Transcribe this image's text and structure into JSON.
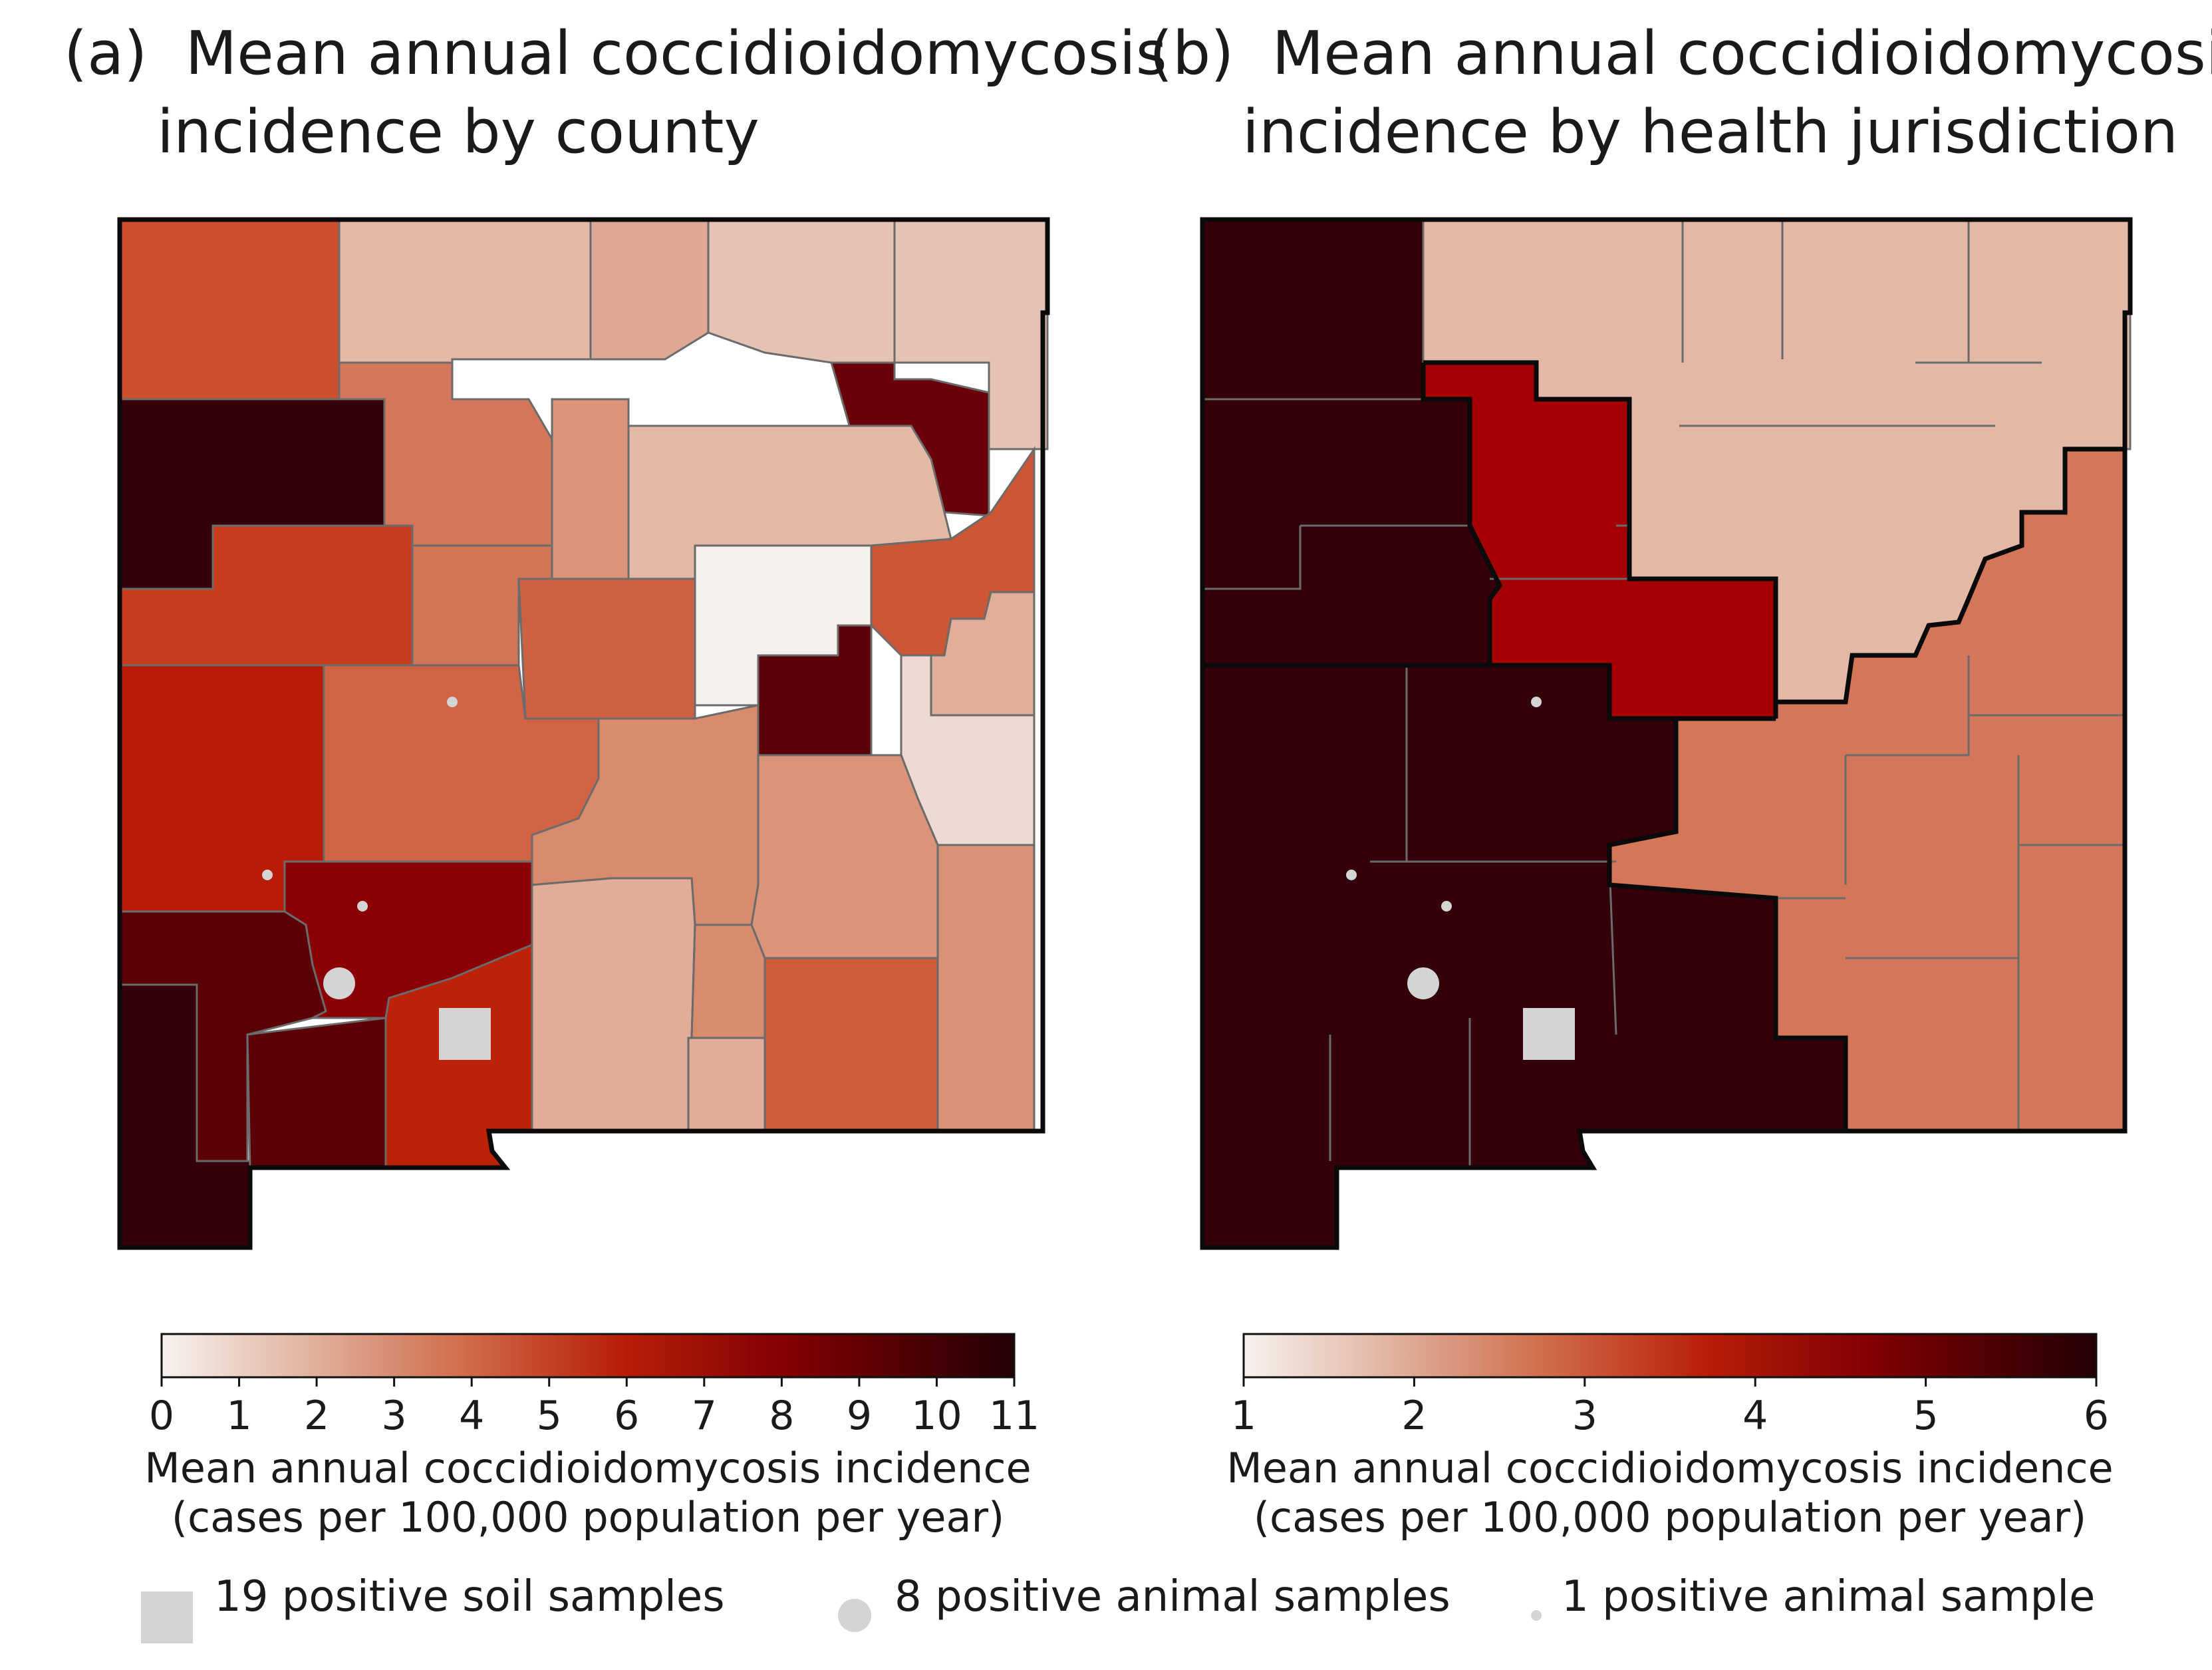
{
  "panels": {
    "a": {
      "label": "(a)",
      "title_line1": "Mean annual coccidioidomycosis",
      "title_line2": "incidence by county",
      "colorbar": {
        "min": 0,
        "max": 11,
        "ticks": [
          "0",
          "1",
          "2",
          "3",
          "4",
          "5",
          "6",
          "7",
          "8",
          "9",
          "10",
          "11"
        ],
        "title_line1": "Mean annual coccidioidomycosis incidence",
        "title_line2": "(cases per 100,000 population per year)"
      }
    },
    "b": {
      "label": "(b)",
      "title_line1": "Mean annual coccidioidomycosis",
      "title_line2": "incidence by health jurisdiction",
      "colorbar": {
        "min": 1,
        "max": 6,
        "ticks": [
          "1",
          "2",
          "3",
          "4",
          "5",
          "6"
        ],
        "title_line1": "Mean annual coccidioidomycosis incidence",
        "title_line2": "(cases per 100,000 population per year)"
      }
    }
  },
  "legend": {
    "soil": "19 positive soil samples",
    "animal_large": "8 positive animal samples",
    "animal_small": "1 positive animal sample"
  },
  "colors": {
    "marker_fill": "#d4d4d4",
    "ramp": [
      "#f6f1ee",
      "#e3b7a2",
      "#cf643e",
      "#b81e08",
      "#830003",
      "#2a0004"
    ],
    "county_boundary": "#6b6b6b",
    "jurisdiction_boundary": "#0a0a0a"
  },
  "chart_data": [
    {
      "type": "choropleth",
      "title": "Mean annual coccidioidomycosis incidence by county",
      "units": "cases per 100,000 population per year",
      "value_range": [
        0,
        11
      ],
      "regions": [
        {
          "id": "NW-top",
          "value": 4.5
        },
        {
          "id": "NW-mid",
          "value": 10.5
        },
        {
          "id": "W-central",
          "value": 5.0
        },
        {
          "id": "W-south-central",
          "value": 6.0
        },
        {
          "id": "SW-mid",
          "value": 8.5
        },
        {
          "id": "SW-bottom",
          "value": 10.5
        },
        {
          "id": "S-bootheel-east",
          "value": 9.5
        },
        {
          "id": "S-central-red",
          "value": 7.5
        },
        {
          "id": "S-border",
          "value": 6.0
        },
        {
          "id": "N-central-1",
          "value": 2.0
        },
        {
          "id": "N-central-2",
          "value": 1.5
        },
        {
          "id": "N-east-corner",
          "value": 1.5
        },
        {
          "id": "N-dark",
          "value": 8.5
        },
        {
          "id": "Central-north",
          "value": 3.5
        },
        {
          "id": "Central",
          "value": 1.5
        },
        {
          "id": "Central-white",
          "value": 0.3
        },
        {
          "id": "Central-dark",
          "value": 9.0
        },
        {
          "id": "E-orange",
          "value": 4.5
        },
        {
          "id": "E-light",
          "value": 2.5
        },
        {
          "id": "E-pale",
          "value": 0.8
        },
        {
          "id": "SE-1",
          "value": 3.0
        },
        {
          "id": "SE-2",
          "value": 4.0
        }
      ],
      "markers": [
        {
          "type": "soil",
          "count": 19
        },
        {
          "type": "animal",
          "count": 8
        },
        {
          "type": "animal",
          "count": 1
        },
        {
          "type": "animal",
          "count": 1
        },
        {
          "type": "animal",
          "count": 1
        }
      ]
    },
    {
      "type": "choropleth",
      "title": "Mean annual coccidioidomycosis incidence by health jurisdiction",
      "units": "cases per 100,000 population per year",
      "value_range": [
        1,
        6
      ],
      "regions": [
        {
          "id": "Northwest",
          "value": 5.9
        },
        {
          "id": "Metro",
          "value": 4.5
        },
        {
          "id": "Northeast",
          "value": 1.9
        },
        {
          "id": "Southwest",
          "value": 5.9
        },
        {
          "id": "Southeast",
          "value": 2.7
        }
      ],
      "markers": [
        {
          "type": "soil",
          "count": 19
        },
        {
          "type": "animal",
          "count": 8
        },
        {
          "type": "animal",
          "count": 1
        },
        {
          "type": "animal",
          "count": 1
        },
        {
          "type": "animal",
          "count": 1
        }
      ]
    }
  ]
}
